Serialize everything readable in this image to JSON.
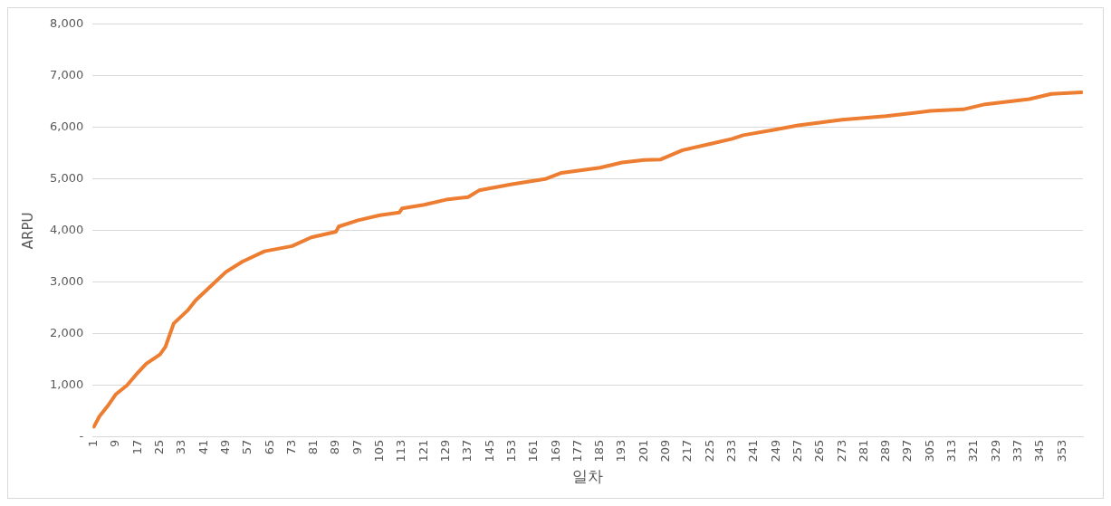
{
  "chart_data": {
    "type": "line",
    "xlabel": "일차",
    "ylabel": "ARPU",
    "x": [
      1,
      3,
      6,
      9,
      13,
      17,
      20,
      25,
      27,
      28,
      30,
      35,
      38,
      45,
      49,
      55,
      63,
      73,
      80,
      89,
      90,
      97,
      105,
      112,
      113,
      121,
      129,
      137,
      141,
      153,
      165,
      171,
      185,
      193,
      201,
      207,
      215,
      225,
      233,
      237,
      249,
      257,
      273,
      289,
      305,
      317,
      325,
      341,
      349,
      360
    ],
    "series": [
      {
        "color": "#ed7d31",
        "values": [
          200,
          400,
          600,
          830,
          1000,
          1250,
          1420,
          1600,
          1750,
          1900,
          2200,
          2450,
          2650,
          3000,
          3200,
          3400,
          3600,
          3700,
          3870,
          3980,
          4080,
          4200,
          4300,
          4350,
          4430,
          4500,
          4600,
          4650,
          4780,
          4900,
          5000,
          5120,
          5220,
          5320,
          5370,
          5380,
          5560,
          5680,
          5780,
          5850,
          5960,
          6040,
          6150,
          6220,
          6320,
          6350,
          6450,
          6550,
          6650,
          6680
        ]
      }
    ],
    "xlim": [
      0.5,
      360.5
    ],
    "xticks": [
      1,
      9,
      17,
      25,
      33,
      41,
      49,
      57,
      65,
      73,
      81,
      89,
      97,
      105,
      113,
      121,
      129,
      137,
      145,
      153,
      161,
      169,
      177,
      185,
      193,
      201,
      209,
      217,
      225,
      233,
      241,
      249,
      257,
      265,
      273,
      281,
      289,
      297,
      305,
      313,
      321,
      329,
      337,
      345,
      353
    ],
    "ylim": [
      0,
      8000
    ],
    "yticks": [
      {
        "value": 0,
        "label": "-"
      },
      {
        "value": 1000,
        "label": "1,000"
      },
      {
        "value": 2000,
        "label": "2,000"
      },
      {
        "value": 3000,
        "label": "3,000"
      },
      {
        "value": 4000,
        "label": "4,000"
      },
      {
        "value": 5000,
        "label": "5,000"
      },
      {
        "value": 6000,
        "label": "6,000"
      },
      {
        "value": 7000,
        "label": "7,000"
      },
      {
        "value": 8000,
        "label": "8,000"
      }
    ],
    "grid": "y",
    "legend": false,
    "marker": "none",
    "line_style": "solid"
  }
}
